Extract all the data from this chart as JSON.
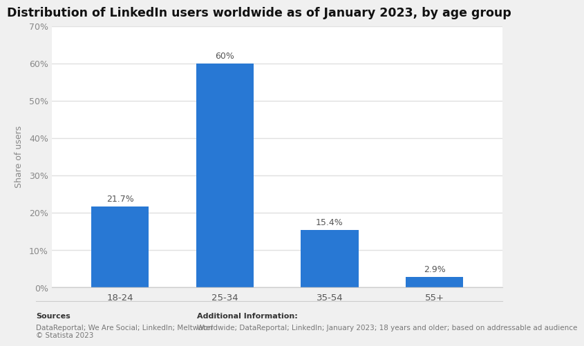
{
  "title": "Distribution of LinkedIn users worldwide as of January 2023, by age group",
  "categories": [
    "18-24",
    "25-34",
    "35-54",
    "55+"
  ],
  "values": [
    21.7,
    60.0,
    15.4,
    2.9
  ],
  "labels": [
    "21.7%",
    "60%",
    "15.4%",
    "2.9%"
  ],
  "bar_color": "#2878d4",
  "ylabel": "Share of users",
  "ylim": [
    0,
    70
  ],
  "yticks": [
    0,
    10,
    20,
    30,
    40,
    50,
    60,
    70
  ],
  "ytick_labels": [
    "0%",
    "10%",
    "20%",
    "30%",
    "40%",
    "50%",
    "60%",
    "70%"
  ],
  "figure_background_color": "#f0f0f0",
  "plot_background_color": "#ffffff",
  "title_fontsize": 12.5,
  "axis_label_fontsize": 9,
  "tick_fontsize": 9,
  "bar_label_fontsize": 9,
  "sources_bold": "Sources",
  "sources_normal": "DataReportal; We Are Social; LinkedIn; Meltwater\n© Statista 2023",
  "additional_bold": "Additional Information:",
  "additional_normal": "Worldwide; DataReportal; LinkedIn; January 2023; 18 years and older; based on addressable ad audience"
}
